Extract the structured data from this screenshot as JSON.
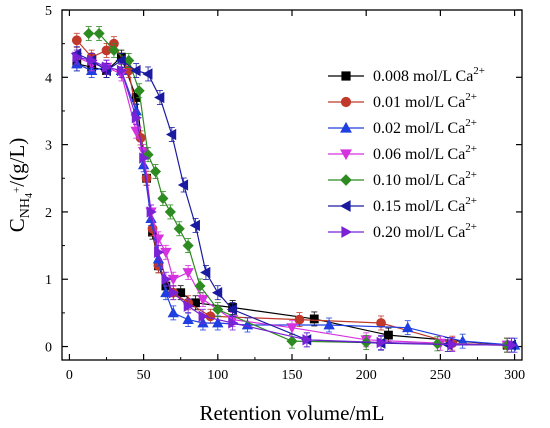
{
  "chart_data": {
    "type": "line",
    "xlabel": "Retention volume/mL",
    "ylabel": {
      "base": "C",
      "sub": "NH",
      "sub2": "4",
      "sup": "+",
      "tail": "/(g/L)"
    },
    "xlim": [
      -5,
      305
    ],
    "ylim": [
      -0.2,
      5
    ],
    "xticks": [
      0,
      50,
      100,
      150,
      200,
      250,
      300
    ],
    "yticks": [
      0,
      1,
      2,
      3,
      4,
      5
    ],
    "grid": false,
    "legend_position": "top-right",
    "series": [
      {
        "name": "0.008 mol/L Ca",
        "sup": "2+",
        "color": "#000000",
        "marker": "square",
        "x": [
          5,
          15,
          25,
          35,
          45,
          52,
          56,
          60,
          65,
          75,
          85,
          110,
          165,
          215,
          295
        ],
        "y": [
          4.2,
          4.15,
          4.1,
          4.3,
          3.7,
          2.5,
          1.7,
          1.2,
          0.9,
          0.8,
          0.65,
          0.58,
          0.41,
          0.17,
          0.02
        ]
      },
      {
        "name": "0.01 mol/L Ca",
        "sup": "2+",
        "color": "#c0392b",
        "marker": "circle",
        "x": [
          5,
          15,
          25,
          30,
          40,
          48,
          52,
          56,
          60,
          70,
          80,
          95,
          155,
          210,
          258,
          295
        ],
        "y": [
          4.55,
          4.3,
          4.4,
          4.5,
          4.1,
          3.1,
          2.5,
          1.75,
          1.2,
          0.8,
          0.65,
          0.45,
          0.4,
          0.35,
          0.05,
          0.02
        ]
      },
      {
        "name": "0.02 mol/L Ca",
        "sup": "2+",
        "color": "#1f3fe0",
        "marker": "triangle-up",
        "x": [
          5,
          15,
          25,
          35,
          45,
          50,
          55,
          60,
          65,
          70,
          80,
          90,
          100,
          120,
          175,
          228,
          265,
          300
        ],
        "y": [
          4.2,
          4.1,
          4.15,
          4.1,
          3.5,
          2.7,
          1.9,
          1.3,
          0.8,
          0.5,
          0.4,
          0.35,
          0.35,
          0.32,
          0.32,
          0.28,
          0.08,
          0.02
        ]
      },
      {
        "name": "0.06 mol/L Ca",
        "sup": "2+",
        "color": "#d633e0",
        "marker": "triangle-down",
        "x": [
          5,
          15,
          25,
          35,
          45,
          50,
          55,
          60,
          65,
          70,
          80,
          90,
          110,
          150,
          200,
          250,
          295
        ],
        "y": [
          4.3,
          4.2,
          4.15,
          4.05,
          3.2,
          2.9,
          2.0,
          1.6,
          1.4,
          1.0,
          1.1,
          0.7,
          0.4,
          0.28,
          0.1,
          0.05,
          0.02
        ]
      },
      {
        "name": "0.10 mol/L Ca",
        "sup": "2+",
        "color": "#2e8b22",
        "marker": "diamond",
        "x": [
          13,
          20,
          30,
          40,
          47,
          53,
          58,
          63,
          68,
          74,
          80,
          88,
          100,
          150,
          200,
          248,
          295
        ],
        "y": [
          4.65,
          4.65,
          4.4,
          4.25,
          3.8,
          2.85,
          2.6,
          2.2,
          2.0,
          1.75,
          1.5,
          0.9,
          0.55,
          0.08,
          0.06,
          0.04,
          0.02
        ]
      },
      {
        "name": "0.15 mol/L Ca",
        "sup": "2+",
        "color": "#1a1aa0",
        "marker": "triangle-left",
        "x": [
          5,
          15,
          25,
          35,
          45,
          53,
          61,
          69,
          77,
          85,
          92,
          100,
          110,
          160,
          210,
          255,
          298
        ],
        "y": [
          4.35,
          4.25,
          4.1,
          4.25,
          4.1,
          4.05,
          3.7,
          3.15,
          2.4,
          1.8,
          1.1,
          0.8,
          0.55,
          0.1,
          0.05,
          0.03,
          0.02
        ]
      },
      {
        "name": "0.20 mol/L Ca",
        "sup": "2+",
        "color": "#7a22d6",
        "marker": "triangle-right",
        "x": [
          5,
          15,
          25,
          35,
          45,
          50,
          55,
          60,
          65,
          70,
          80,
          90,
          110,
          160,
          210,
          258,
          298
        ],
        "y": [
          4.3,
          4.25,
          4.15,
          4.1,
          3.4,
          2.8,
          2.0,
          1.4,
          1.0,
          0.8,
          0.6,
          0.45,
          0.35,
          0.1,
          0.06,
          0.03,
          0.02
        ]
      }
    ]
  }
}
